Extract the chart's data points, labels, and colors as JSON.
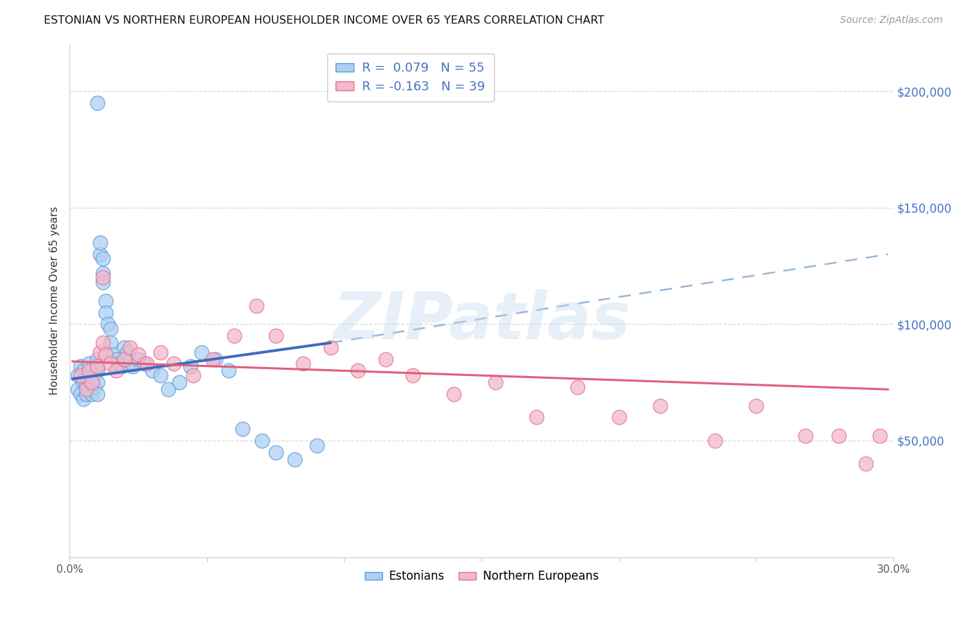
{
  "title": "ESTONIAN VS NORTHERN EUROPEAN HOUSEHOLDER INCOME OVER 65 YEARS CORRELATION CHART",
  "source": "Source: ZipAtlas.com",
  "ylabel": "Householder Income Over 65 years",
  "xmin": 0.0,
  "xmax": 0.3,
  "ymin": 0,
  "ymax": 220000,
  "background_color": "#ffffff",
  "grid_color": "#d8d8d8",
  "legend_R1": "R =  0.079",
  "legend_N1": "N = 55",
  "legend_R2": "R = -0.163",
  "legend_N2": "N = 39",
  "color_estonian_fill": "#aecff5",
  "color_estonian_edge": "#5b9bd5",
  "color_northern_fill": "#f4b8cc",
  "color_northern_edge": "#e07090",
  "color_estonian_line": "#3f6abf",
  "color_northern_line": "#e0607a",
  "color_dashed": "#9ab8d8",
  "watermark": "ZIPatlas",
  "estonian_x": [
    0.003,
    0.003,
    0.004,
    0.004,
    0.005,
    0.005,
    0.005,
    0.006,
    0.006,
    0.007,
    0.007,
    0.007,
    0.008,
    0.008,
    0.008,
    0.009,
    0.009,
    0.01,
    0.01,
    0.01,
    0.01,
    0.011,
    0.011,
    0.012,
    0.012,
    0.012,
    0.013,
    0.013,
    0.014,
    0.015,
    0.015,
    0.016,
    0.017,
    0.018,
    0.019,
    0.02,
    0.021,
    0.022,
    0.023,
    0.025,
    0.027,
    0.03,
    0.033,
    0.036,
    0.04,
    0.044,
    0.048,
    0.053,
    0.058,
    0.063,
    0.07,
    0.075,
    0.082,
    0.09,
    0.01
  ],
  "estonian_y": [
    78000,
    72000,
    82000,
    70000,
    75000,
    68000,
    80000,
    74000,
    70000,
    78000,
    83000,
    76000,
    80000,
    74000,
    70000,
    78000,
    73000,
    85000,
    80000,
    75000,
    70000,
    130000,
    135000,
    128000,
    122000,
    118000,
    110000,
    105000,
    100000,
    98000,
    92000,
    87000,
    85000,
    83000,
    82000,
    90000,
    88000,
    84000,
    82000,
    85000,
    83000,
    80000,
    78000,
    72000,
    75000,
    82000,
    88000,
    85000,
    80000,
    55000,
    50000,
    45000,
    42000,
    48000,
    195000
  ],
  "northern_x": [
    0.004,
    0.006,
    0.007,
    0.008,
    0.01,
    0.011,
    0.012,
    0.013,
    0.015,
    0.017,
    0.02,
    0.022,
    0.025,
    0.028,
    0.033,
    0.038,
    0.045,
    0.052,
    0.06,
    0.068,
    0.075,
    0.085,
    0.095,
    0.105,
    0.115,
    0.125,
    0.14,
    0.155,
    0.17,
    0.185,
    0.2,
    0.215,
    0.235,
    0.25,
    0.268,
    0.28,
    0.29,
    0.295,
    0.012
  ],
  "northern_y": [
    78000,
    72000,
    80000,
    75000,
    82000,
    88000,
    92000,
    87000,
    83000,
    80000,
    85000,
    90000,
    87000,
    83000,
    88000,
    83000,
    78000,
    85000,
    95000,
    108000,
    95000,
    83000,
    90000,
    80000,
    85000,
    78000,
    70000,
    75000,
    60000,
    73000,
    60000,
    65000,
    50000,
    65000,
    52000,
    52000,
    40000,
    52000,
    120000
  ],
  "blue_line_x": [
    0.001,
    0.095
  ],
  "blue_line_y": [
    76500,
    92000
  ],
  "pink_line_x": [
    0.001,
    0.298
  ],
  "pink_line_y": [
    84000,
    72000
  ],
  "dash_line_x": [
    0.095,
    0.298
  ],
  "dash_line_y": [
    92000,
    130000
  ]
}
